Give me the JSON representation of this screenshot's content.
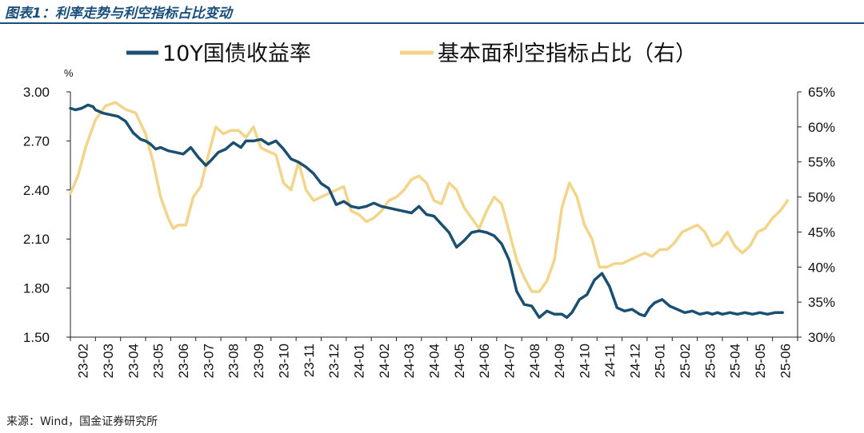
{
  "figure": {
    "title": "图表1：利率走势与利空指标占比变动",
    "source": "来源：Wind，国金证券研究所"
  },
  "chart_data": {
    "type": "line",
    "title": "",
    "left_axis": {
      "unit_label": "%",
      "ylim": [
        1.5,
        3.0
      ],
      "ticks": [
        "3.00",
        "2.70",
        "2.40",
        "2.10",
        "1.80",
        "1.50"
      ]
    },
    "right_axis": {
      "ylim": [
        30,
        65
      ],
      "ticks": [
        "65%",
        "60%",
        "55%",
        "50%",
        "45%",
        "40%",
        "35%",
        "30%"
      ]
    },
    "x_ticks": [
      "23-02",
      "23-03",
      "23-04",
      "23-05",
      "23-06",
      "23-07",
      "23-08",
      "23-09",
      "23-10",
      "23-11",
      "23-12",
      "24-01",
      "24-02",
      "24-03",
      "24-04",
      "24-05",
      "24-06",
      "24-07",
      "24-08",
      "24-09",
      "24-10",
      "24-11",
      "24-12",
      "25-01",
      "25-02",
      "25-03",
      "25-04",
      "25-05",
      "25-06"
    ],
    "legend_position": "top",
    "grid": false,
    "series": [
      {
        "name": "10Y国债收益率",
        "axis": "left",
        "color": "#1b4f72",
        "x": [
          0,
          0.2,
          0.45,
          0.7,
          0.9,
          1.0,
          1.3,
          1.6,
          1.9,
          2.2,
          2.5,
          2.8,
          3.0,
          3.2,
          3.4,
          3.6,
          3.9,
          4.2,
          4.5,
          4.8,
          5.1,
          5.4,
          5.6,
          5.9,
          6.2,
          6.5,
          6.8,
          7.0,
          7.3,
          7.6,
          7.9,
          8.2,
          8.5,
          8.8,
          9.1,
          9.4,
          9.7,
          10.0,
          10.3,
          10.6,
          10.9,
          11.2,
          11.5,
          11.8,
          12.1,
          12.4,
          12.7,
          13.0,
          13.3,
          13.6,
          13.9,
          14.2,
          14.5,
          14.8,
          15.1,
          15.4,
          15.7,
          16.0,
          16.3,
          16.6,
          16.9,
          17.2,
          17.5,
          17.8,
          18.1,
          18.4,
          18.7,
          19.0,
          19.3,
          19.6,
          19.8,
          20.0,
          20.3,
          20.6,
          20.9,
          21.2,
          21.5,
          21.8,
          22.1,
          22.4,
          22.7,
          22.9,
          23.1,
          23.3,
          23.6,
          23.9,
          24.2,
          24.5,
          24.8,
          25.1,
          25.4,
          25.6,
          25.8,
          26.0,
          26.3,
          26.6,
          26.9,
          27.2,
          27.5,
          27.8,
          28.1,
          28.4
        ],
        "values": [
          2.9,
          2.89,
          2.9,
          2.92,
          2.91,
          2.89,
          2.87,
          2.86,
          2.85,
          2.82,
          2.75,
          2.71,
          2.7,
          2.68,
          2.65,
          2.66,
          2.64,
          2.63,
          2.62,
          2.66,
          2.6,
          2.55,
          2.58,
          2.63,
          2.65,
          2.69,
          2.66,
          2.7,
          2.7,
          2.71,
          2.68,
          2.7,
          2.65,
          2.59,
          2.57,
          2.54,
          2.5,
          2.44,
          2.41,
          2.31,
          2.33,
          2.3,
          2.29,
          2.3,
          2.32,
          2.3,
          2.29,
          2.28,
          2.27,
          2.26,
          2.3,
          2.25,
          2.24,
          2.19,
          2.14,
          2.05,
          2.09,
          2.14,
          2.15,
          2.14,
          2.12,
          2.07,
          1.97,
          1.78,
          1.7,
          1.69,
          1.62,
          1.66,
          1.64,
          1.64,
          1.62,
          1.65,
          1.73,
          1.76,
          1.85,
          1.89,
          1.81,
          1.68,
          1.66,
          1.67,
          1.64,
          1.63,
          1.68,
          1.71,
          1.73,
          1.69,
          1.67,
          1.65,
          1.66,
          1.64,
          1.65,
          1.64,
          1.65,
          1.64,
          1.65,
          1.64,
          1.65,
          1.64,
          1.65,
          1.64,
          1.65,
          1.65
        ]
      },
      {
        "name": "基本面利空指标占比（右）",
        "axis": "right",
        "color": "#f2d58a",
        "x": [
          0,
          0.3,
          0.6,
          1.0,
          1.4,
          1.8,
          2.2,
          2.6,
          3.0,
          3.3,
          3.6,
          3.9,
          4.1,
          4.3,
          4.6,
          4.9,
          5.2,
          5.5,
          5.8,
          6.1,
          6.4,
          6.7,
          7.0,
          7.3,
          7.6,
          7.9,
          8.2,
          8.5,
          8.8,
          9.1,
          9.4,
          9.7,
          10.0,
          10.3,
          10.6,
          10.9,
          11.2,
          11.5,
          11.8,
          12.1,
          12.4,
          12.7,
          13.0,
          13.3,
          13.6,
          13.9,
          14.2,
          14.5,
          14.8,
          15.1,
          15.4,
          15.7,
          16.0,
          16.3,
          16.6,
          16.9,
          17.2,
          17.5,
          17.8,
          18.1,
          18.4,
          18.7,
          19.0,
          19.3,
          19.6,
          19.9,
          20.2,
          20.5,
          20.8,
          21.1,
          21.4,
          21.7,
          22.0,
          22.3,
          22.6,
          22.9,
          23.2,
          23.5,
          23.8,
          24.1,
          24.4,
          24.7,
          25.0,
          25.3,
          25.6,
          25.9,
          26.2,
          26.5,
          26.8,
          27.1,
          27.4,
          27.7,
          28.0,
          28.3,
          28.6
        ],
        "values": [
          50.5,
          53,
          57,
          61,
          63,
          63.5,
          62.5,
          62,
          59,
          55,
          50,
          47,
          45.5,
          46,
          46,
          50,
          51.5,
          56,
          60,
          59,
          59.5,
          59.5,
          58.5,
          60,
          57,
          56.5,
          56,
          52,
          51,
          55,
          51,
          49.5,
          50,
          50.5,
          51,
          51.5,
          48,
          47.5,
          46.5,
          47,
          48,
          49.5,
          50,
          51,
          52.5,
          53,
          52,
          49.5,
          49,
          52,
          51,
          48.5,
          47,
          45.5,
          48,
          50,
          49,
          45,
          41,
          38.5,
          36.5,
          36.5,
          38,
          41,
          48.5,
          52,
          50,
          46,
          44,
          40,
          40,
          40.5,
          40.5,
          41,
          41.5,
          42,
          41.5,
          42.5,
          42.5,
          43.5,
          45,
          45.5,
          46,
          45,
          43,
          43.5,
          45,
          43,
          42,
          43,
          45,
          45.5,
          47,
          48,
          49.5
        ]
      }
    ]
  }
}
